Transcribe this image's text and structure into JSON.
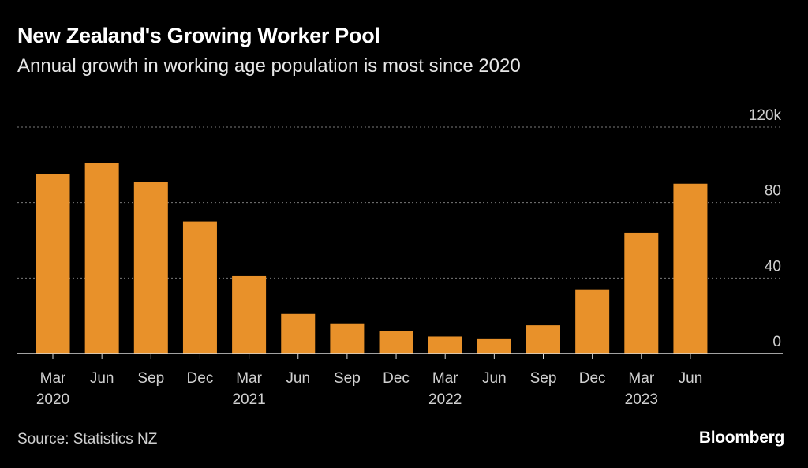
{
  "chart_data": {
    "type": "bar",
    "title": "New Zealand's Growing Worker Pool",
    "subtitle": "Annual growth in working age population is most since 2020",
    "categories": [
      "Mar 2020",
      "Jun 2020",
      "Sep 2020",
      "Dec 2020",
      "Mar 2021",
      "Jun 2021",
      "Sep 2021",
      "Dec 2021",
      "Mar 2022",
      "Jun 2022",
      "Sep 2022",
      "Dec 2022",
      "Mar 2023",
      "Jun 2023"
    ],
    "tick_labels": [
      {
        "month": "Mar",
        "year": "2020"
      },
      {
        "month": "Jun",
        "year": ""
      },
      {
        "month": "Sep",
        "year": ""
      },
      {
        "month": "Dec",
        "year": ""
      },
      {
        "month": "Mar",
        "year": "2021"
      },
      {
        "month": "Jun",
        "year": ""
      },
      {
        "month": "Sep",
        "year": ""
      },
      {
        "month": "Dec",
        "year": ""
      },
      {
        "month": "Mar",
        "year": "2022"
      },
      {
        "month": "Jun",
        "year": ""
      },
      {
        "month": "Sep",
        "year": ""
      },
      {
        "month": "Dec",
        "year": ""
      },
      {
        "month": "Mar",
        "year": "2023"
      },
      {
        "month": "Jun",
        "year": ""
      }
    ],
    "values": [
      95,
      101,
      91,
      70,
      41,
      21,
      16,
      12,
      9,
      8,
      15,
      34,
      64,
      90
    ],
    "ylim": [
      0,
      120
    ],
    "yticks": [
      {
        "value": 0,
        "label": "0"
      },
      {
        "value": 40,
        "label": "40"
      },
      {
        "value": 80,
        "label": "80"
      },
      {
        "value": 120,
        "label": "120k"
      }
    ],
    "xlabel": "",
    "ylabel": "",
    "grid": true,
    "bar_color": "#e8912a"
  },
  "footer": {
    "source": "Source: Statistics NZ",
    "brand": "Bloomberg"
  }
}
